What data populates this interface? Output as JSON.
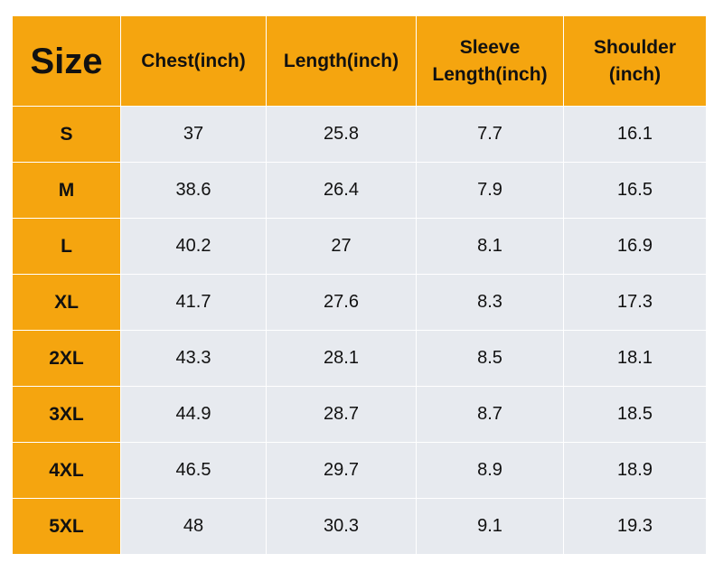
{
  "table": {
    "headers": {
      "size": "Size",
      "chest": "Chest(inch)",
      "length": "Length(inch)",
      "sleeve_line1": "Sleeve",
      "sleeve_line2": "Length(inch)",
      "shoulder_line1": "Shoulder",
      "shoulder_line2": "(inch)"
    },
    "rows": [
      {
        "size": "S",
        "chest": "37",
        "length": "25.8",
        "sleeve": "7.7",
        "shoulder": "16.1"
      },
      {
        "size": "M",
        "chest": "38.6",
        "length": "26.4",
        "sleeve": "7.9",
        "shoulder": "16.5"
      },
      {
        "size": "L",
        "chest": "40.2",
        "length": "27",
        "sleeve": "8.1",
        "shoulder": "16.9"
      },
      {
        "size": "XL",
        "chest": "41.7",
        "length": "27.6",
        "sleeve": "8.3",
        "shoulder": "17.3"
      },
      {
        "size": "2XL",
        "chest": "43.3",
        "length": "28.1",
        "sleeve": "8.5",
        "shoulder": "18.1"
      },
      {
        "size": "3XL",
        "chest": "44.9",
        "length": "28.7",
        "sleeve": "8.7",
        "shoulder": "18.5"
      },
      {
        "size": "4XL",
        "chest": "46.5",
        "length": "29.7",
        "sleeve": "8.9",
        "shoulder": "18.9"
      },
      {
        "size": "5XL",
        "chest": "48",
        "length": "30.3",
        "sleeve": "9.1",
        "shoulder": "19.3"
      }
    ]
  },
  "colors": {
    "header_bg": "#f5a50f",
    "size_col_bg": "#f5a50f",
    "body_bg": "#e7eaef",
    "text": "#111111"
  }
}
